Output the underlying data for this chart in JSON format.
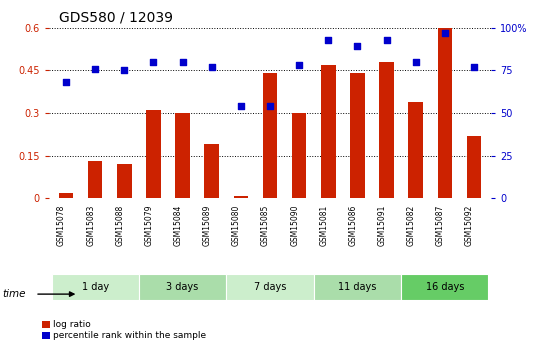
{
  "title": "GDS580 / 12039",
  "samples": [
    "GSM15078",
    "GSM15083",
    "GSM15088",
    "GSM15079",
    "GSM15084",
    "GSM15089",
    "GSM15080",
    "GSM15085",
    "GSM15090",
    "GSM15081",
    "GSM15086",
    "GSM15091",
    "GSM15082",
    "GSM15087",
    "GSM15092"
  ],
  "log_ratio": [
    0.02,
    0.13,
    0.12,
    0.31,
    0.3,
    0.19,
    0.01,
    0.44,
    0.3,
    0.47,
    0.44,
    0.48,
    0.34,
    0.6,
    0.22
  ],
  "pct_rank": [
    0.68,
    0.76,
    0.75,
    0.8,
    0.8,
    0.77,
    0.54,
    0.54,
    0.78,
    0.93,
    0.89,
    0.93,
    0.8,
    0.97,
    0.77
  ],
  "groups": [
    {
      "label": "1 day",
      "start": 0,
      "end": 3,
      "color": "#cceecc"
    },
    {
      "label": "3 days",
      "start": 3,
      "end": 6,
      "color": "#aaddaa"
    },
    {
      "label": "7 days",
      "start": 6,
      "end": 9,
      "color": "#cceecc"
    },
    {
      "label": "11 days",
      "start": 9,
      "end": 12,
      "color": "#aaddaa"
    },
    {
      "label": "16 days",
      "start": 12,
      "end": 15,
      "color": "#66cc66"
    }
  ],
  "bar_color": "#cc2200",
  "dot_color": "#0000cc",
  "bar_width": 0.5,
  "ylim_left": [
    0,
    0.6
  ],
  "ylim_right": [
    0,
    1.0
  ],
  "yticks_left": [
    0,
    0.15,
    0.3,
    0.45,
    0.6
  ],
  "yticks_right": [
    0,
    0.25,
    0.5,
    0.75,
    1.0
  ],
  "ytick_labels_left": [
    "0",
    "0.15",
    "0.3",
    "0.45",
    "0.6"
  ],
  "ytick_labels_right": [
    "0",
    "25",
    "50",
    "75",
    "100%"
  ],
  "legend_log_ratio": "log ratio",
  "legend_pct": "percentile rank within the sample",
  "time_label": "time",
  "bg_color": "#ffffff",
  "plot_bg": "#ffffff",
  "sample_area_color": "#cccccc",
  "dotted_line_color": "#000000",
  "title_fontsize": 10,
  "tick_fontsize": 7,
  "axis_label_color_left": "#cc2200",
  "axis_label_color_right": "#0000cc"
}
